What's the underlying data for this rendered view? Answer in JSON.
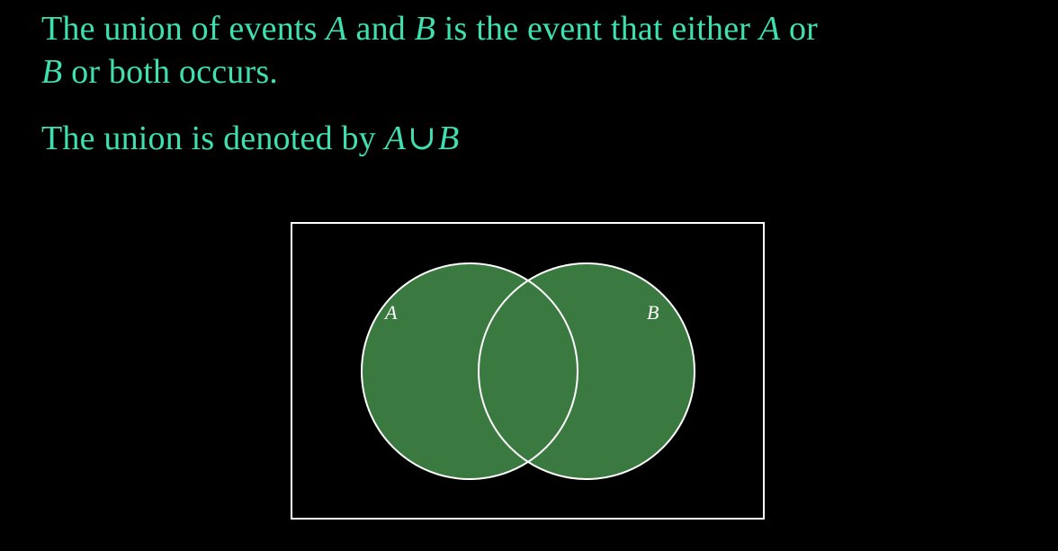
{
  "definition": {
    "prefix": "The union of events ",
    "event_a": "A",
    "and_word": " and ",
    "event_b": "B",
    "middle": " is the event that either ",
    "event_a2": "A",
    "or_word": " or",
    "line_break_event": "B",
    "suffix": " or both occurs."
  },
  "notation": {
    "prefix": "The union is denoted by ",
    "left": "A",
    "operator": "∪",
    "right": "B"
  },
  "venn": {
    "label_a": "A",
    "label_b": "B",
    "fill_color": "#3a7a40",
    "stroke_color": "#ffffff",
    "frame_color": "#ffffff",
    "text_color": "#3fe0b0"
  }
}
